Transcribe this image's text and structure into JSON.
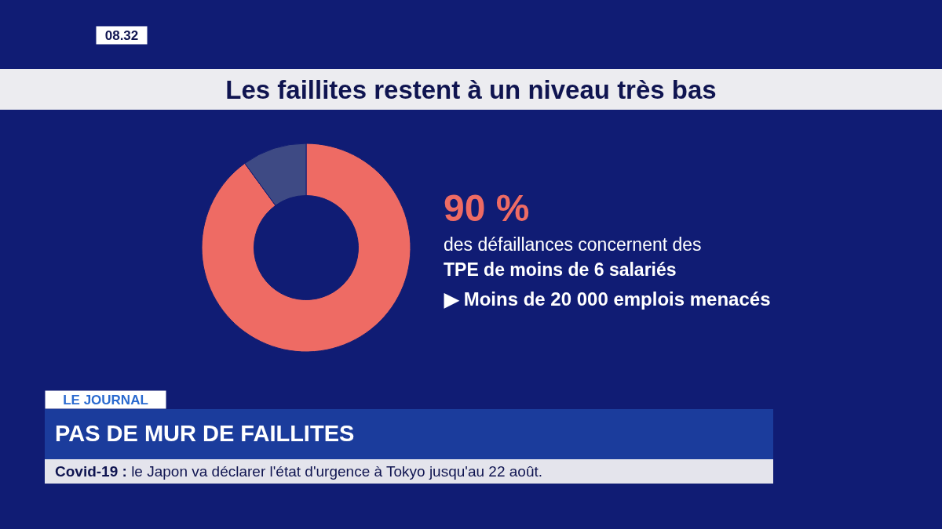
{
  "chart_data": {
    "type": "donut",
    "title": "Les faillites restent à un niveau très bas",
    "categories": [
      null,
      null
    ],
    "values": [
      90,
      10
    ],
    "colors": [
      "#ee6b64",
      "#3e4a84"
    ],
    "value_labels": [
      "90 %",
      null
    ],
    "annotations": [
      "08.32",
      "des défaillances concernent des",
      "TPE de moins de 6 salariés",
      "▶ Moins de 20 000 emplois menacés",
      "LE JOURNAL",
      "PAS DE MUR DE FAILLITES",
      "Covid-19 : le Japon va déclarer l'état d'urgence à Tokyo jusqu'au 22 août."
    ]
  }
}
